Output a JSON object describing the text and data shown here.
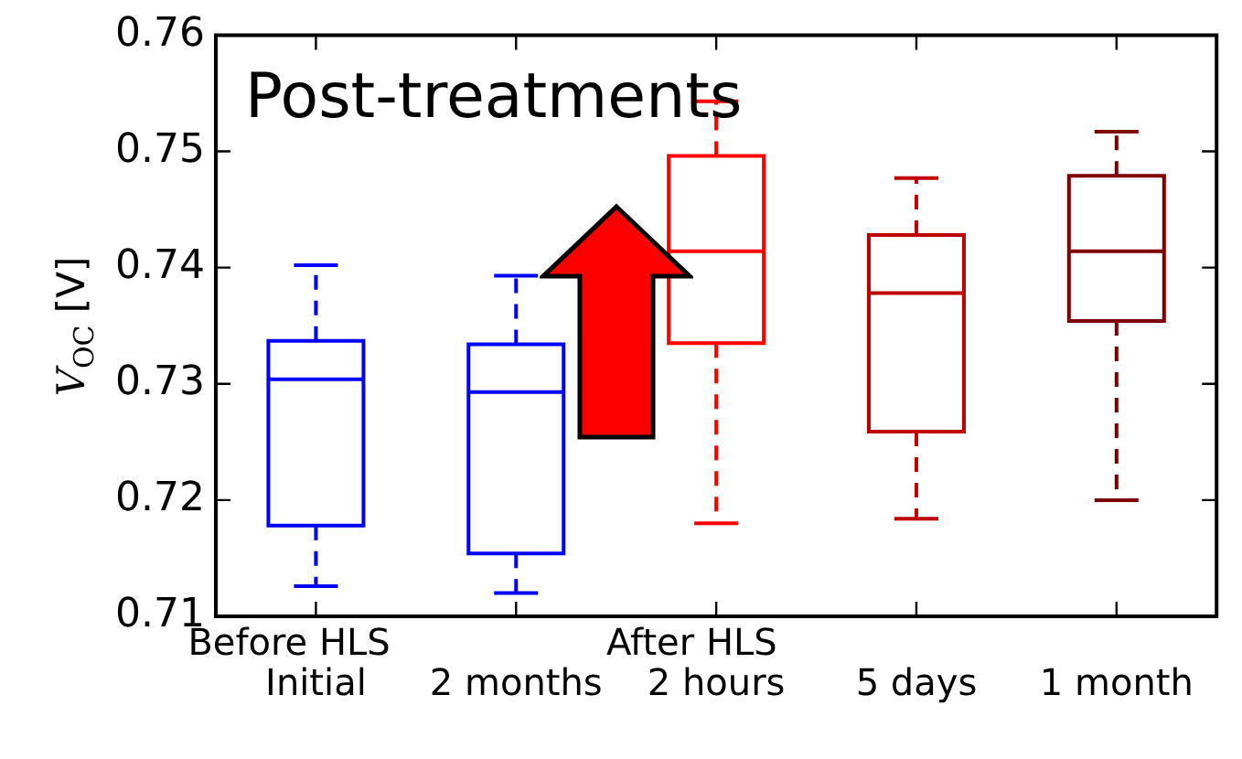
{
  "chart_data": {
    "type": "box",
    "title": "Post-treatments",
    "ylabel": "V$_{OC}$ [V]",
    "categories": [
      "Initial",
      "2 months",
      "2 hours",
      "5 days",
      "1 month"
    ],
    "colors": [
      "#0000ff",
      "#0000ff",
      "#ff0000",
      "#c00000",
      "#800000"
    ],
    "boxes": [
      {
        "low": 0.7126,
        "q1": 0.7178,
        "median": 0.7304,
        "q3": 0.7337,
        "high": 0.7402
      },
      {
        "low": 0.712,
        "q1": 0.7154,
        "median": 0.7293,
        "q3": 0.7334,
        "high": 0.7393
      },
      {
        "low": 0.718,
        "q1": 0.7335,
        "median": 0.7414,
        "q3": 0.7496,
        "high": 0.7543
      },
      {
        "low": 0.7184,
        "q1": 0.7259,
        "median": 0.7378,
        "q3": 0.7428,
        "high": 0.7477
      },
      {
        "low": 0.72,
        "q1": 0.7354,
        "median": 0.7414,
        "q3": 0.7479,
        "high": 0.7517
      }
    ],
    "ylim": [
      0.71,
      0.76
    ],
    "yticks": [
      0.71,
      0.72,
      0.73,
      0.74,
      0.75,
      0.76
    ],
    "annotations": [
      "Before HLS",
      "After HLS"
    ],
    "line_style": "dashed"
  }
}
